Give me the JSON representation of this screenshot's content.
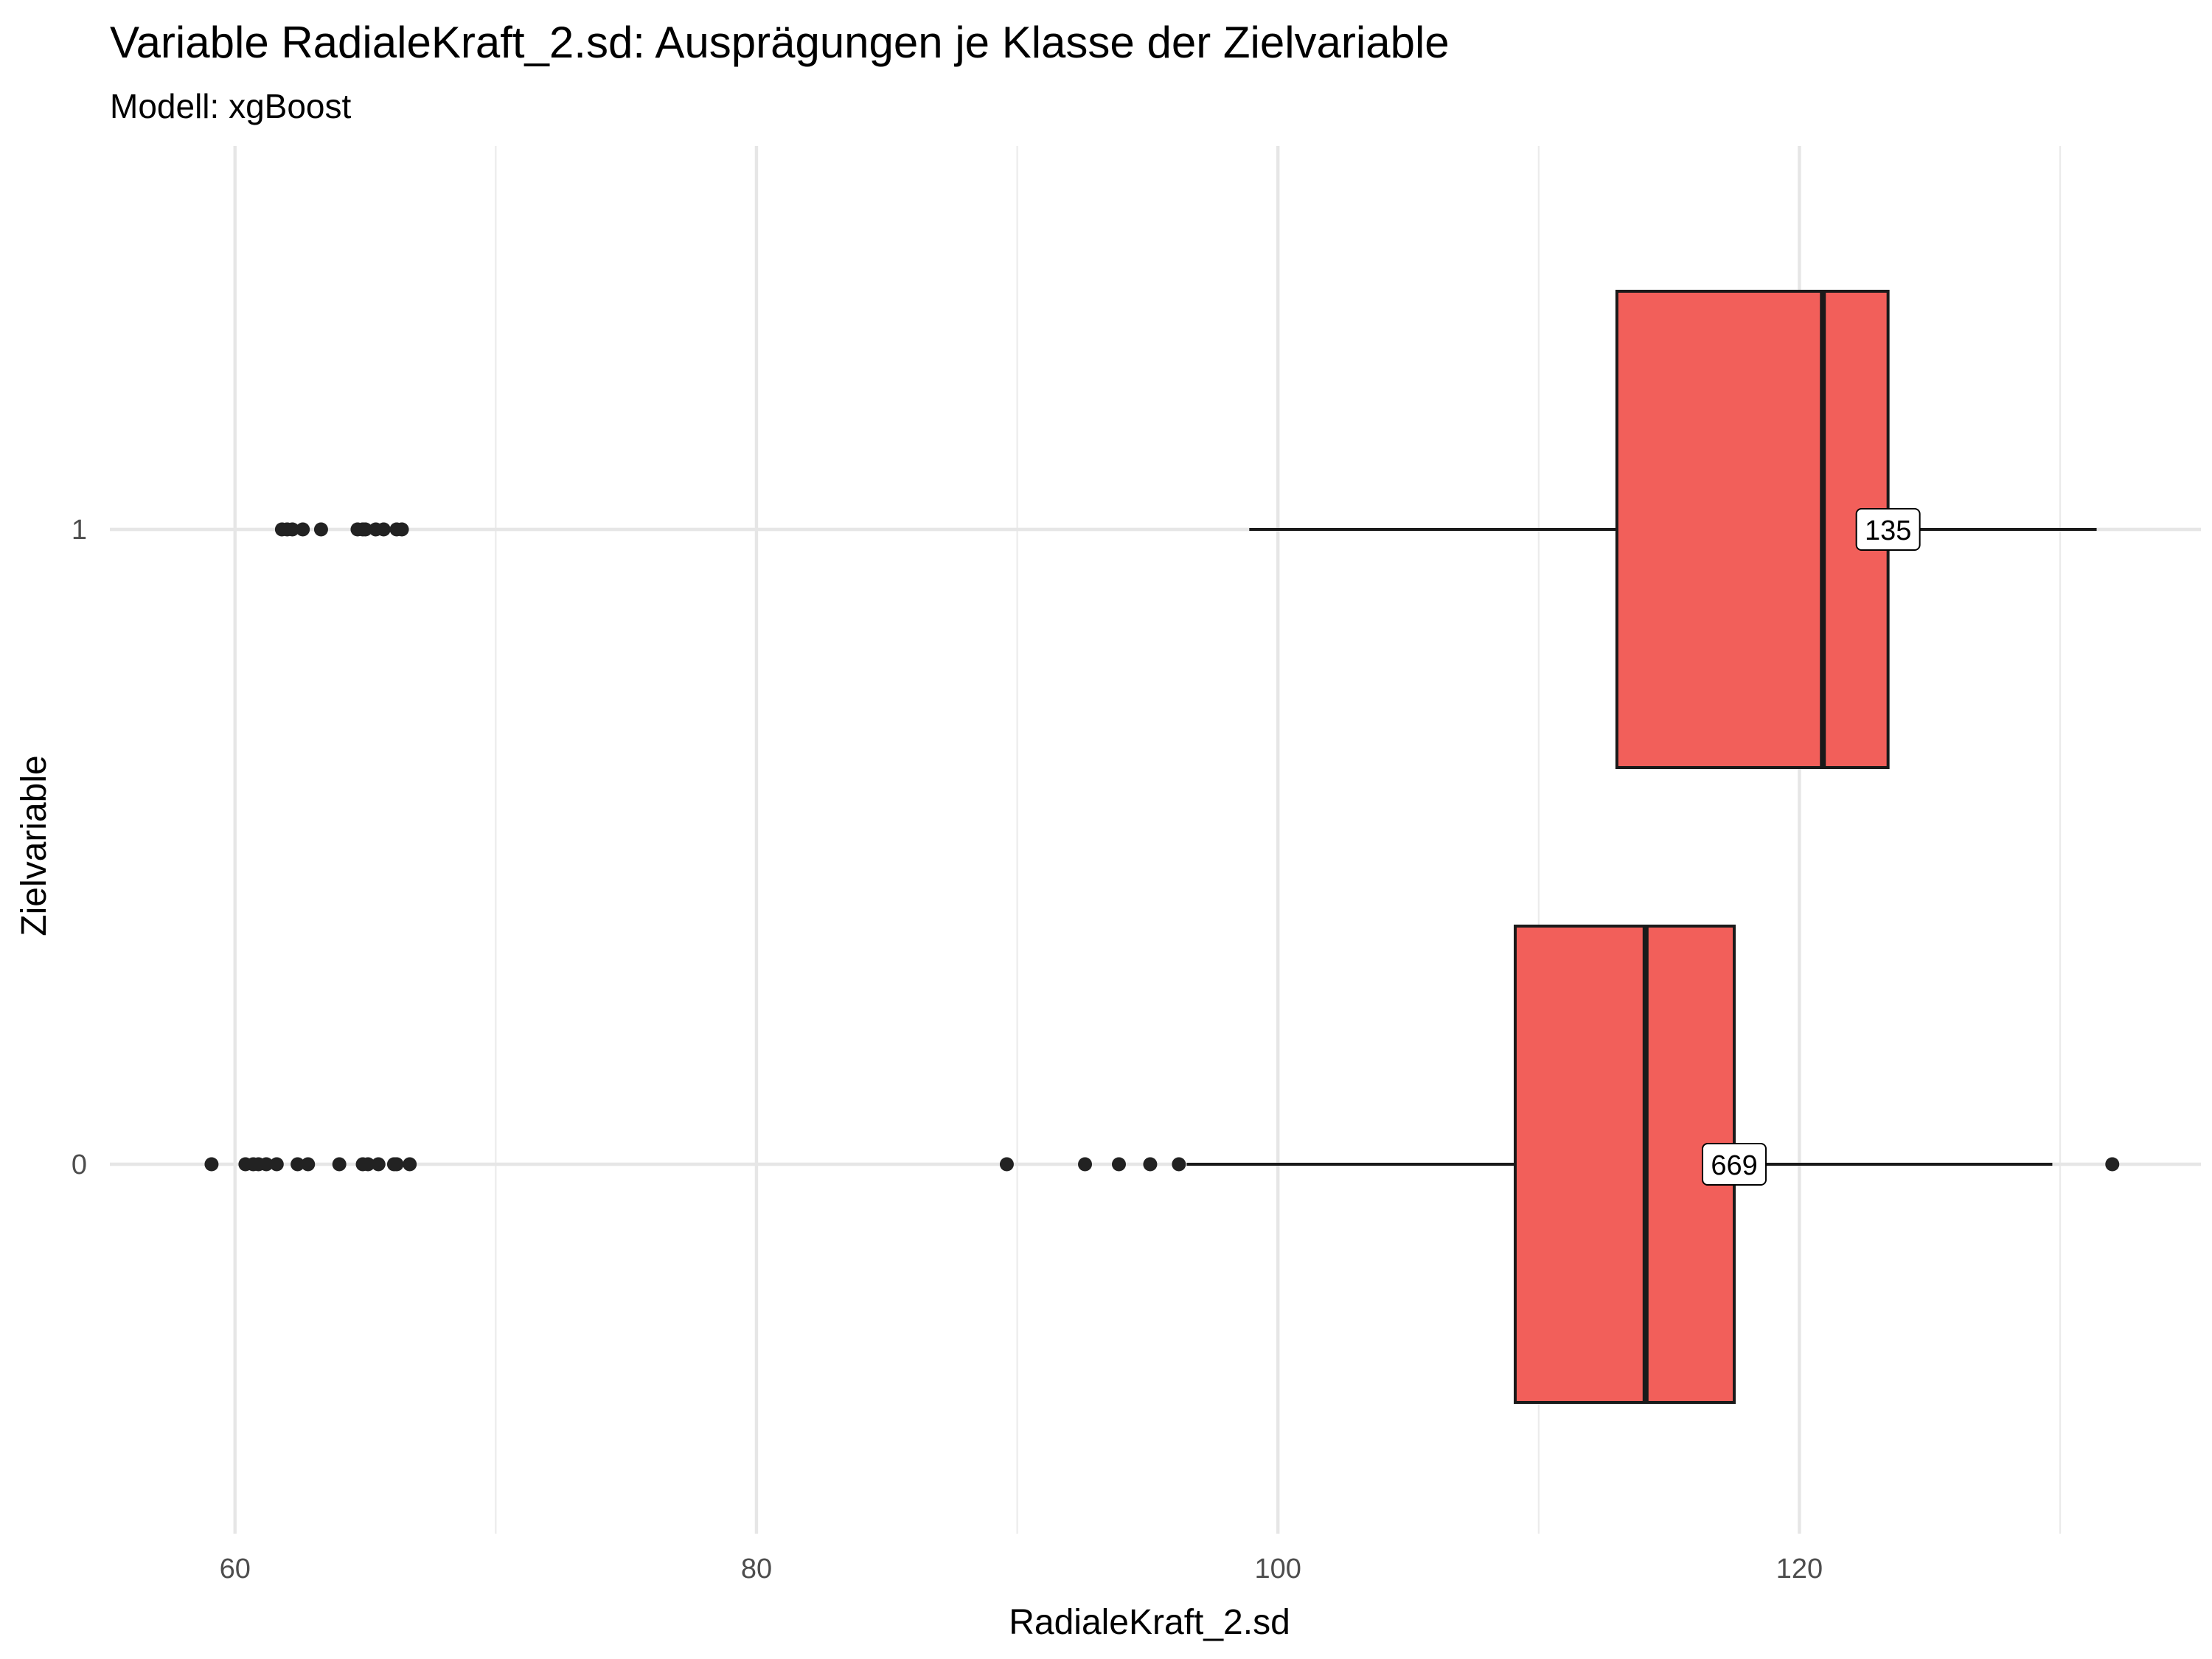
{
  "chart_data": {
    "type": "boxplot",
    "title": "Variable RadialeKraft_2.sd: Ausprägungen je Klasse der Zielvariable",
    "subtitle": "Modell: xgBoost",
    "xlabel": "RadialeKraft_2.sd",
    "ylabel": "Zielvariable",
    "xlim": [
      55.2,
      135.4
    ],
    "x_ticks": [
      60,
      80,
      100,
      120
    ],
    "x_tick_labels": [
      "60",
      "80",
      "100",
      "120"
    ],
    "y_categories": [
      "0",
      "1"
    ],
    "grid": true,
    "fill_color": "#f25f5a",
    "groups": [
      {
        "label": "0",
        "whisker_low": 96.5,
        "q1": 109.1,
        "median": 114.1,
        "q3": 117.5,
        "whisker_high": 129.7,
        "n": "669",
        "outliers": [
          59.1,
          60.4,
          60.7,
          60.9,
          61.2,
          61.6,
          62.4,
          62.8,
          64.0,
          64.9,
          65.1,
          65.5,
          66.1,
          66.2,
          66.7,
          89.6,
          92.6,
          93.9,
          95.1,
          96.2,
          132.0
        ]
      },
      {
        "label": "1",
        "whisker_low": 98.9,
        "q1": 113.0,
        "median": 120.9,
        "q3": 123.4,
        "whisker_high": 131.4,
        "n": "135",
        "outliers": [
          61.8,
          62.0,
          62.2,
          62.6,
          63.3,
          64.7,
          64.9,
          65.0,
          65.4,
          65.7,
          66.2,
          66.4
        ]
      }
    ]
  }
}
